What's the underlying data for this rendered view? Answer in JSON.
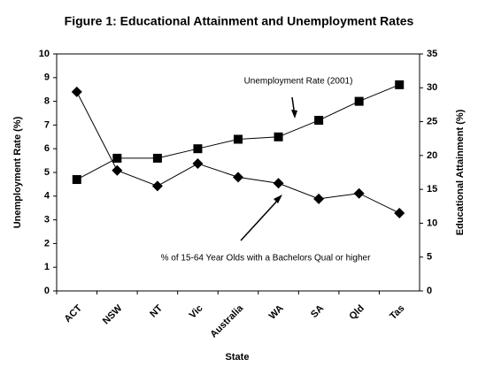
{
  "chart_data": {
    "type": "line",
    "title": "Figure 1: Educational Attainment and Unemployment Rates",
    "x_label": "State",
    "y_label": "Unemployment Rate (%)",
    "y2_label": "Educational Attainment (%)",
    "categories": [
      "ACT",
      "NSW",
      "NT",
      "Vic",
      "Australia",
      "WA",
      "SA",
      "Qld",
      "Tas"
    ],
    "series": [
      {
        "name": "Unemployment Rate (2001)",
        "color": "#000000",
        "marker": "square",
        "values": [
          4.7,
          5.6,
          5.6,
          6.0,
          6.4,
          6.5,
          7.2,
          8.0,
          8.7
        ]
      },
      {
        "name": "% of 15-64 Year Olds with a Bachelors Qual or higher",
        "color": "#000000",
        "marker": "diamond",
        "axis": "y2",
        "values": [
          29.4,
          17.8,
          15.5,
          18.8,
          16.8,
          15.9,
          13.6,
          14.4,
          11.5
        ]
      }
    ],
    "ylim": [
      0,
      10
    ],
    "yticks": [
      0,
      1,
      2,
      3,
      4,
      5,
      6,
      7,
      8,
      9,
      10
    ],
    "y2lim": [
      0,
      35
    ],
    "y2ticks": [
      0,
      5,
      10,
      15,
      20,
      25,
      30,
      35
    ],
    "grid": false
  }
}
